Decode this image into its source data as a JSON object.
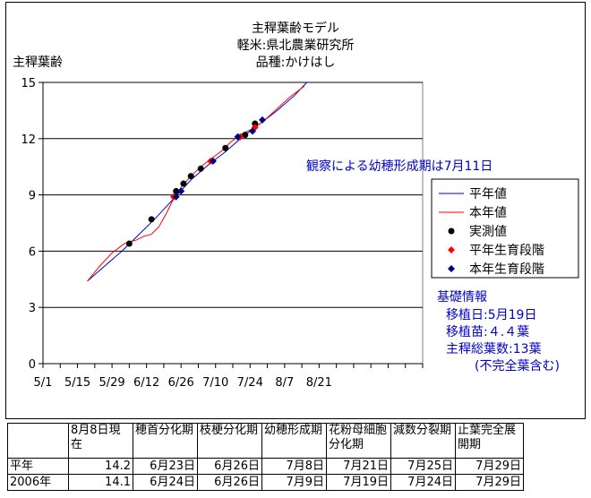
{
  "chart_data": {
    "type": "line",
    "title": [
      "主稈葉齢モデル",
      "軽米:県北農業研究所",
      "品種:かけはし"
    ],
    "ylabel": "主稈葉齢",
    "xlabel": "",
    "ylim": [
      0,
      15
    ],
    "yticks": [
      0,
      3,
      6,
      9,
      12,
      15
    ],
    "xlim_day": [
      0,
      154
    ],
    "xticks": [
      {
        "label": "5/1",
        "day": 0
      },
      {
        "label": "5/15",
        "day": 14
      },
      {
        "label": "5/29",
        "day": 28
      },
      {
        "label": "6/12",
        "day": 42
      },
      {
        "label": "6/26",
        "day": 56
      },
      {
        "label": "7/10",
        "day": 70
      },
      {
        "label": "7/24",
        "day": 84
      },
      {
        "label": "8/7",
        "day": 98
      },
      {
        "label": "8/21",
        "day": 112
      }
    ],
    "grid": "horizontal",
    "legend_position": "right",
    "annotation": "観察による幼穂形成期は7月11日",
    "series": [
      {
        "name": "平年値",
        "kind": "line",
        "color": "#0000cc",
        "points": [
          [
            18,
            4.4
          ],
          [
            25,
            5.2
          ],
          [
            32,
            6.0
          ],
          [
            39,
            6.9
          ],
          [
            46,
            7.8
          ],
          [
            53,
            8.8
          ],
          [
            60,
            9.8
          ],
          [
            67,
            10.6
          ],
          [
            74,
            11.3
          ],
          [
            81,
            12.1
          ],
          [
            88,
            12.8
          ],
          [
            95,
            13.5
          ],
          [
            102,
            14.3
          ],
          [
            107,
            15.0
          ]
        ]
      },
      {
        "name": "本年値",
        "kind": "line",
        "color": "#ff0000",
        "points": [
          [
            18,
            4.4
          ],
          [
            23,
            5.2
          ],
          [
            28,
            5.9
          ],
          [
            33,
            6.4
          ],
          [
            38,
            6.6
          ],
          [
            41,
            6.8
          ],
          [
            44,
            6.9
          ],
          [
            47,
            7.3
          ],
          [
            50,
            8.0
          ],
          [
            53,
            8.8
          ],
          [
            56,
            9.4
          ],
          [
            60,
            10.0
          ],
          [
            64,
            10.5
          ],
          [
            67,
            10.8
          ],
          [
            70,
            11.1
          ],
          [
            73,
            11.4
          ],
          [
            76,
            11.8
          ],
          [
            80,
            12.2
          ],
          [
            83,
            12.4
          ],
          [
            86,
            12.6
          ],
          [
            90,
            13.0
          ],
          [
            95,
            13.6
          ],
          [
            100,
            14.2
          ],
          [
            106,
            14.8
          ]
        ]
      },
      {
        "name": "実測値",
        "kind": "marker",
        "marker": "circle",
        "color": "#000000",
        "points": [
          [
            35,
            6.4
          ],
          [
            44,
            7.7
          ],
          [
            54,
            9.2
          ],
          [
            57,
            9.6
          ],
          [
            60,
            10.0
          ],
          [
            64,
            10.4
          ],
          [
            74,
            11.5
          ],
          [
            82,
            12.2
          ],
          [
            86,
            12.8
          ]
        ]
      },
      {
        "name": "平年生育段階",
        "kind": "marker",
        "marker": "diamond",
        "color": "#ff0000",
        "points": [
          [
            53,
            8.9
          ],
          [
            68,
            10.8
          ],
          [
            80,
            12.1
          ],
          [
            86,
            12.6
          ]
        ]
      },
      {
        "name": "本年生育段階",
        "kind": "marker",
        "marker": "diamond",
        "color": "#000080",
        "points": [
          [
            54,
            8.9
          ],
          [
            56,
            9.2
          ],
          [
            69,
            10.8
          ],
          [
            79,
            12.1
          ],
          [
            85,
            12.4
          ],
          [
            89,
            13.0
          ]
        ]
      }
    ]
  },
  "info": {
    "heading": "基礎情報",
    "lines": [
      "移植日:5月19日",
      "移植苗:４.４葉",
      "主稈総葉数:13葉",
      "(不完全葉含む)"
    ]
  },
  "table": {
    "headers": [
      "",
      "8月8日現在",
      "穂首分化期",
      "枝梗分化期",
      "幼穂形成期",
      "花粉母細胞分化期",
      "減数分裂期",
      "止葉完全展開期"
    ],
    "rows": [
      [
        "平年",
        "14.2",
        "6月23日",
        "6月26日",
        "7月8日",
        "7月21日",
        "7月25日",
        "7月29日"
      ],
      [
        "2006年",
        "14.1",
        "6月24日",
        "6月26日",
        "7月9日",
        "7月19日",
        "7月24日",
        "7月29日"
      ]
    ]
  }
}
